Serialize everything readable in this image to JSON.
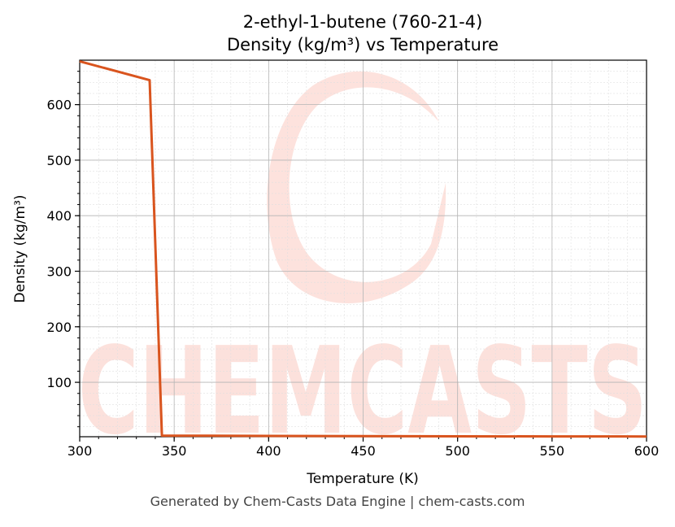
{
  "watermark": {
    "text": "CHEMCASTS"
  },
  "footer": {
    "text": "Generated by Chem-Casts Data Engine | chem-casts.com"
  },
  "chart_data": {
    "type": "line",
    "title": "2-ethyl-1-butene (760-21-4)",
    "subtitle": "Density (kg/m³) vs Temperature",
    "xlabel": "Temperature (K)",
    "ylabel": "Density (kg/m³)",
    "xlim": [
      300,
      600
    ],
    "ylim": [
      2,
      680
    ],
    "x_ticks": [
      300,
      350,
      400,
      450,
      500,
      550,
      600
    ],
    "y_ticks": [
      100,
      200,
      300,
      400,
      500,
      600
    ],
    "grid": true,
    "line_color": "#d9541e",
    "series": [
      {
        "x": [
          300,
          337,
          343.5,
          350,
          400,
          450,
          500,
          550,
          600
        ],
        "y": [
          678,
          644,
          4,
          3.9,
          3.4,
          3.1,
          2.8,
          2.6,
          2.4
        ]
      }
    ]
  }
}
